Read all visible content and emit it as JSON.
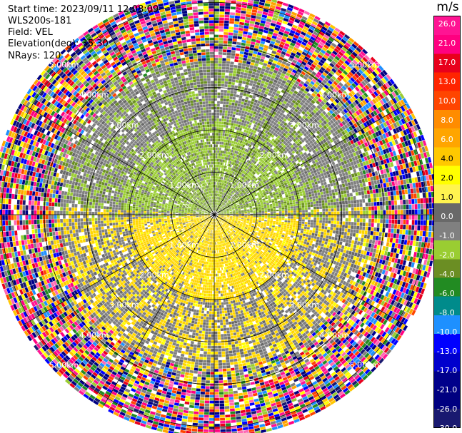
{
  "header": {
    "start_time": "Start time: 2023/09/11 12:08:09",
    "instrument": "WLS200s-181",
    "field": "Field: VEL",
    "elevation": "Elevation(deg): 35.30",
    "nrays": "NRays: 120"
  },
  "colorbar": {
    "unit": "m/s",
    "ticks": [
      "26.0",
      "21.0",
      "17.0",
      "13.0",
      "10.0",
      "8.0",
      "6.0",
      "4.0",
      "2.0",
      "1.0",
      "0.0",
      "-1.0",
      "-2.0",
      "-4.0",
      "-6.0",
      "-8.0",
      "-10.0",
      "-13.0",
      "-17.0",
      "-21.0",
      "-26.0",
      "-30.0"
    ],
    "colors": [
      "#ff1493",
      "#ff0080",
      "#e8001c",
      "#ff2400",
      "#ff4500",
      "#ff8c00",
      "#ffa500",
      "#ffc800",
      "#ffff00",
      "#fff44f",
      "#696969",
      "#808080",
      "#9acd32",
      "#6b8e23",
      "#228b22",
      "#008b8b",
      "#1e90ff",
      "#0000ff",
      "#0000cd",
      "#00008b",
      "#000080",
      "#191970"
    ]
  },
  "chart_data": {
    "type": "ppi",
    "field": "VEL",
    "units": "m/s",
    "elevation_deg": 35.3,
    "nrays": 120,
    "range_rings": [
      "1.00km",
      "2.00km",
      "3.00km",
      "4.00km",
      "5.00km"
    ],
    "range_km": [
      0,
      5.2
    ],
    "color_scale": [
      -30,
      26
    ],
    "grid": true
  }
}
